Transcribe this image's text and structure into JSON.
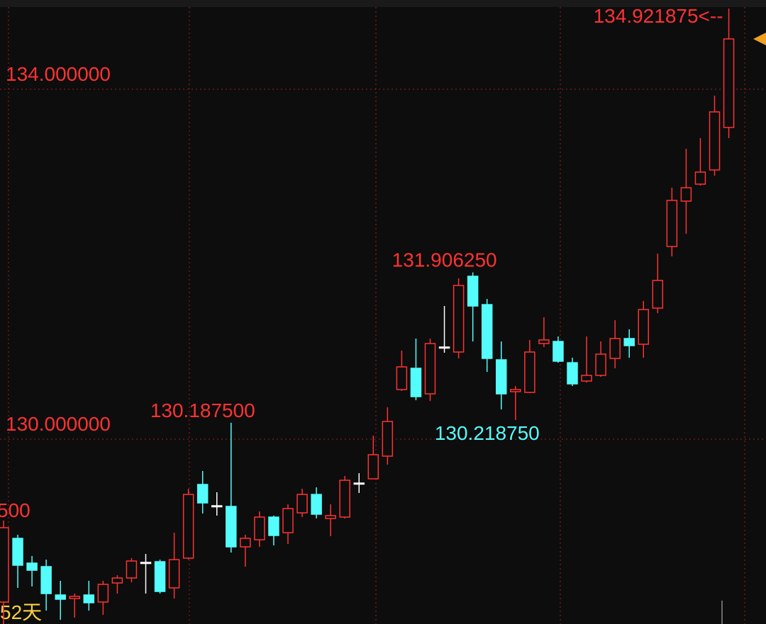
{
  "chart_data": {
    "type": "candlestick",
    "ylim": [
      127.887,
      134.939
    ],
    "yticks": [
      {
        "value": 134,
        "label": "134.000000"
      },
      {
        "value": 130,
        "label": "130.000000"
      }
    ],
    "grid": true,
    "up_color": "#ff3232",
    "down_color": "#54fcfc",
    "flat_color": "#ffffff",
    "open": [
      128.138,
      128.866,
      128.583,
      128.543,
      128.219,
      128.178,
      128.219,
      128.138,
      128.356,
      128.413,
      128.591,
      128.599,
      128.3,
      128.64,
      129.482,
      129.239,
      129.231,
      128.769,
      128.85,
      129.109,
      128.931,
      129.158,
      129.368,
      129.093,
      129.109,
      129.498,
      129.547,
      129.806,
      130.567,
      130.81,
      130.518,
      131.053,
      130.996,
      131.862,
      131.538,
      130.907,
      130.543,
      130.534,
      131.093,
      131.117,
      130.874,
      130.664,
      130.729,
      130.923,
      131.15,
      131.085,
      131.498,
      132.202,
      132.721,
      132.915,
      133.077,
      133.563
    ],
    "high": [
      129.069,
      128.907,
      128.664,
      128.623,
      128.381,
      128.235,
      128.381,
      128.381,
      128.445,
      128.64,
      128.688,
      128.623,
      128.931,
      129.433,
      129.636,
      129.393,
      130.1875,
      128.907,
      129.174,
      129.126,
      129.255,
      129.433,
      129.449,
      129.255,
      129.579,
      129.611,
      130.04,
      130.364,
      131.012,
      131.15,
      131.15,
      131.522,
      131.838,
      131.90625,
      131.603,
      131.117,
      130.607,
      131.134,
      131.393,
      131.174,
      130.931,
      131.174,
      131.117,
      131.36,
      131.255,
      131.579,
      132.121,
      132.874,
      133.32,
      133.441,
      133.927,
      134.921875
    ],
    "low": [
      127.887,
      128.3,
      128.316,
      128.04,
      127.935,
      127.96,
      128.04,
      127.992,
      128.235,
      128.364,
      128.235,
      128.235,
      128.178,
      128.623,
      129.15,
      129.126,
      128.704,
      128.543,
      128.769,
      128.785,
      128.802,
      129.109,
      129.093,
      128.891,
      129.093,
      129.385,
      129.547,
      129.709,
      130.551,
      130.445,
      130.437,
      130.988,
      130.923,
      131.117,
      130.769,
      130.34,
      130.21875,
      130.526,
      131.053,
      130.874,
      130.607,
      130.648,
      130.713,
      130.81,
      130.931,
      130.931,
      131.441,
      132.089,
      132.348,
      132.899,
      133.012,
      133.441
    ],
    "close": [
      128.988,
      128.559,
      128.502,
      128.235,
      128.17,
      128.202,
      128.13,
      128.34,
      128.413,
      128.607,
      128.591,
      128.259,
      128.623,
      129.368,
      129.271,
      129.239,
      128.769,
      128.866,
      129.109,
      128.899,
      129.206,
      129.368,
      129.142,
      129.126,
      129.53,
      129.498,
      129.822,
      130.202,
      130.826,
      130.486,
      131.093,
      131.053,
      131.757,
      131.522,
      130.923,
      130.518,
      130.567,
      130.996,
      131.134,
      130.891,
      130.632,
      130.729,
      130.972,
      131.15,
      131.069,
      131.482,
      131.814,
      132.729,
      132.874,
      133.053,
      133.741,
      134.575
    ],
    "annotations": [
      {
        "text": "134.921875<--",
        "value": 134.921875,
        "color": "#ff3232"
      },
      {
        "text": "131.906250",
        "value": 131.90625,
        "color": "#ff3232"
      },
      {
        "text": "130.187500",
        "value": 130.1875,
        "color": "#ff3232"
      },
      {
        "text": "130.218750",
        "value": 130.21875,
        "color": "#54fcfc"
      }
    ],
    "edge_labels": [
      "500",
      "52天"
    ]
  }
}
